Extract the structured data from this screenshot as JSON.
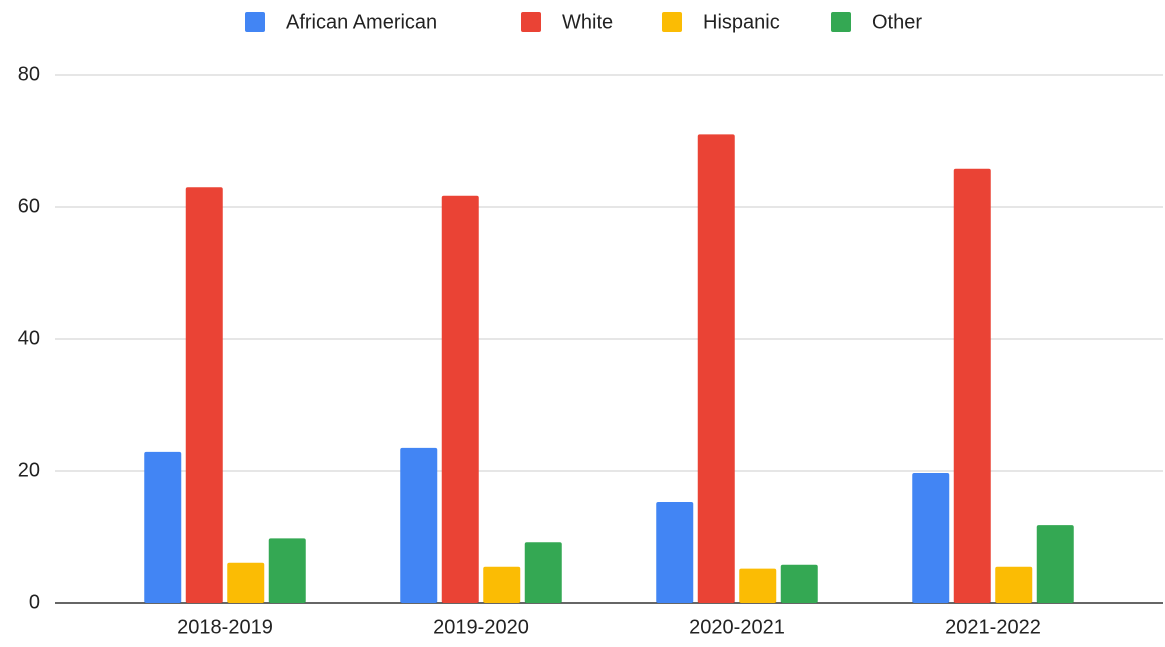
{
  "chart_data": {
    "type": "bar",
    "categories": [
      "2018-2019",
      "2019-2020",
      "2020-2021",
      "2021-2022"
    ],
    "series": [
      {
        "name": "African American",
        "color": "#4285f4",
        "values": [
          22.9,
          23.5,
          15.3,
          19.7
        ]
      },
      {
        "name": "White",
        "color": "#ea4335",
        "values": [
          63,
          61.7,
          71,
          65.8
        ]
      },
      {
        "name": "Hispanic",
        "color": "#fbbc04",
        "values": [
          6.1,
          5.5,
          5.2,
          5.5
        ]
      },
      {
        "name": "Other",
        "color": "#34a853",
        "values": [
          9.8,
          9.2,
          5.8,
          11.8
        ]
      }
    ],
    "ylim": [
      0,
      80
    ],
    "yticks": [
      0,
      20,
      40,
      60,
      80
    ],
    "grid": true,
    "legend": "top"
  }
}
